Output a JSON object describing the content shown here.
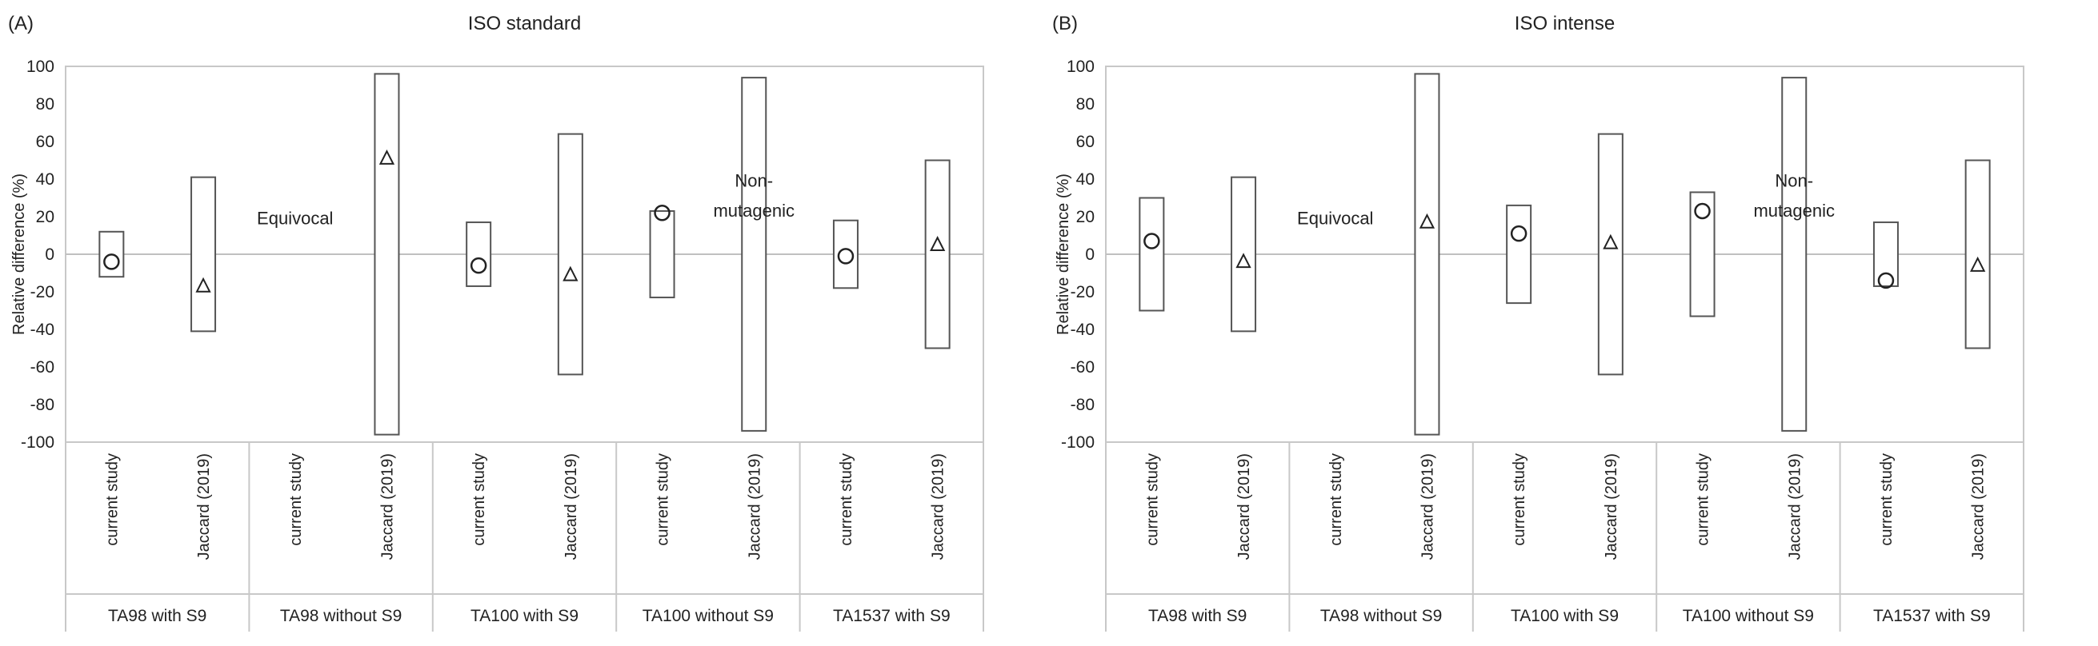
{
  "chart_data": [
    {
      "type": "range-bar",
      "panel_label": "(A)",
      "title": "ISO standard",
      "xlabel": "",
      "ylabel": "Relative difference (%)",
      "ylim": [
        -100,
        100
      ],
      "yticks": [
        "-100",
        "-80",
        "-60",
        "-40",
        "-20",
        "0",
        "20",
        "40",
        "60",
        "80",
        "100"
      ],
      "grid": false,
      "groups": [
        "TA98 with S9",
        "TA98 without S9",
        "TA100 with S9",
        "TA100 without S9",
        "TA1537 with S9"
      ],
      "categories": [
        "current study",
        "Jaccard (2019)"
      ],
      "series": [
        {
          "group_index": 0,
          "category_index": 0,
          "low": -12,
          "high": 12,
          "value": -4,
          "marker": "circle"
        },
        {
          "group_index": 0,
          "category_index": 1,
          "low": -41,
          "high": 41,
          "value": -17,
          "marker": "triangle"
        },
        {
          "group_index": 1,
          "category_index": 1,
          "low": -96,
          "high": 96,
          "value": 51,
          "marker": "triangle"
        },
        {
          "group_index": 2,
          "category_index": 0,
          "low": -17,
          "high": 17,
          "value": -6,
          "marker": "circle"
        },
        {
          "group_index": 2,
          "category_index": 1,
          "low": -64,
          "high": 64,
          "value": -11,
          "marker": "triangle"
        },
        {
          "group_index": 3,
          "category_index": 0,
          "low": -23,
          "high": 23,
          "value": 22,
          "marker": "circle"
        },
        {
          "group_index": 3,
          "category_index": 1,
          "low": -94,
          "high": 94,
          "value": null,
          "marker": "none"
        },
        {
          "group_index": 4,
          "category_index": 0,
          "low": -18,
          "high": 18,
          "value": -1,
          "marker": "circle"
        },
        {
          "group_index": 4,
          "category_index": 1,
          "low": -50,
          "high": 50,
          "value": 5,
          "marker": "triangle"
        }
      ],
      "annotations": [
        {
          "text": "Equivocal",
          "group_index": 1,
          "category_index": 0,
          "y": 16
        },
        {
          "text": "Non-",
          "group_index": 3,
          "category_index": 1,
          "y": 36
        },
        {
          "text": "mutagenic",
          "group_index": 3,
          "category_index": 1,
          "y": 20
        }
      ]
    },
    {
      "type": "range-bar",
      "panel_label": "(B)",
      "title": "ISO intense",
      "xlabel": "",
      "ylabel": "Relative difference (%)",
      "ylim": [
        -100,
        100
      ],
      "yticks": [
        "-100",
        "-80",
        "-60",
        "-40",
        "-20",
        "0",
        "20",
        "40",
        "60",
        "80",
        "100"
      ],
      "grid": false,
      "groups": [
        "TA98 with S9",
        "TA98 without S9",
        "TA100 with S9",
        "TA100 without S9",
        "TA1537 with S9"
      ],
      "categories": [
        "current study",
        "Jaccard (2019)"
      ],
      "series": [
        {
          "group_index": 0,
          "category_index": 0,
          "low": -30,
          "high": 30,
          "value": 7,
          "marker": "circle"
        },
        {
          "group_index": 0,
          "category_index": 1,
          "low": -41,
          "high": 41,
          "value": -4,
          "marker": "triangle"
        },
        {
          "group_index": 1,
          "category_index": 1,
          "low": -96,
          "high": 96,
          "value": 17,
          "marker": "triangle"
        },
        {
          "group_index": 2,
          "category_index": 0,
          "low": -26,
          "high": 26,
          "value": 11,
          "marker": "circle"
        },
        {
          "group_index": 2,
          "category_index": 1,
          "low": -64,
          "high": 64,
          "value": 6,
          "marker": "triangle"
        },
        {
          "group_index": 3,
          "category_index": 0,
          "low": -33,
          "high": 33,
          "value": 23,
          "marker": "circle"
        },
        {
          "group_index": 3,
          "category_index": 1,
          "low": -94,
          "high": 94,
          "value": null,
          "marker": "none"
        },
        {
          "group_index": 4,
          "category_index": 0,
          "low": -17,
          "high": 17,
          "value": -14,
          "marker": "circle"
        },
        {
          "group_index": 4,
          "category_index": 1,
          "low": -50,
          "high": 50,
          "value": -6,
          "marker": "triangle"
        }
      ],
      "annotations": [
        {
          "text": "Equivocal",
          "group_index": 1,
          "category_index": 0,
          "y": 16
        },
        {
          "text": "Non-",
          "group_index": 3,
          "category_index": 1,
          "y": 36
        },
        {
          "text": "mutagenic",
          "group_index": 3,
          "category_index": 1,
          "y": 20
        }
      ]
    }
  ],
  "colors": {
    "axis": "#c8c8c8",
    "box": "#555555",
    "zero_line": "#c0c0c0",
    "text": "#222222"
  }
}
